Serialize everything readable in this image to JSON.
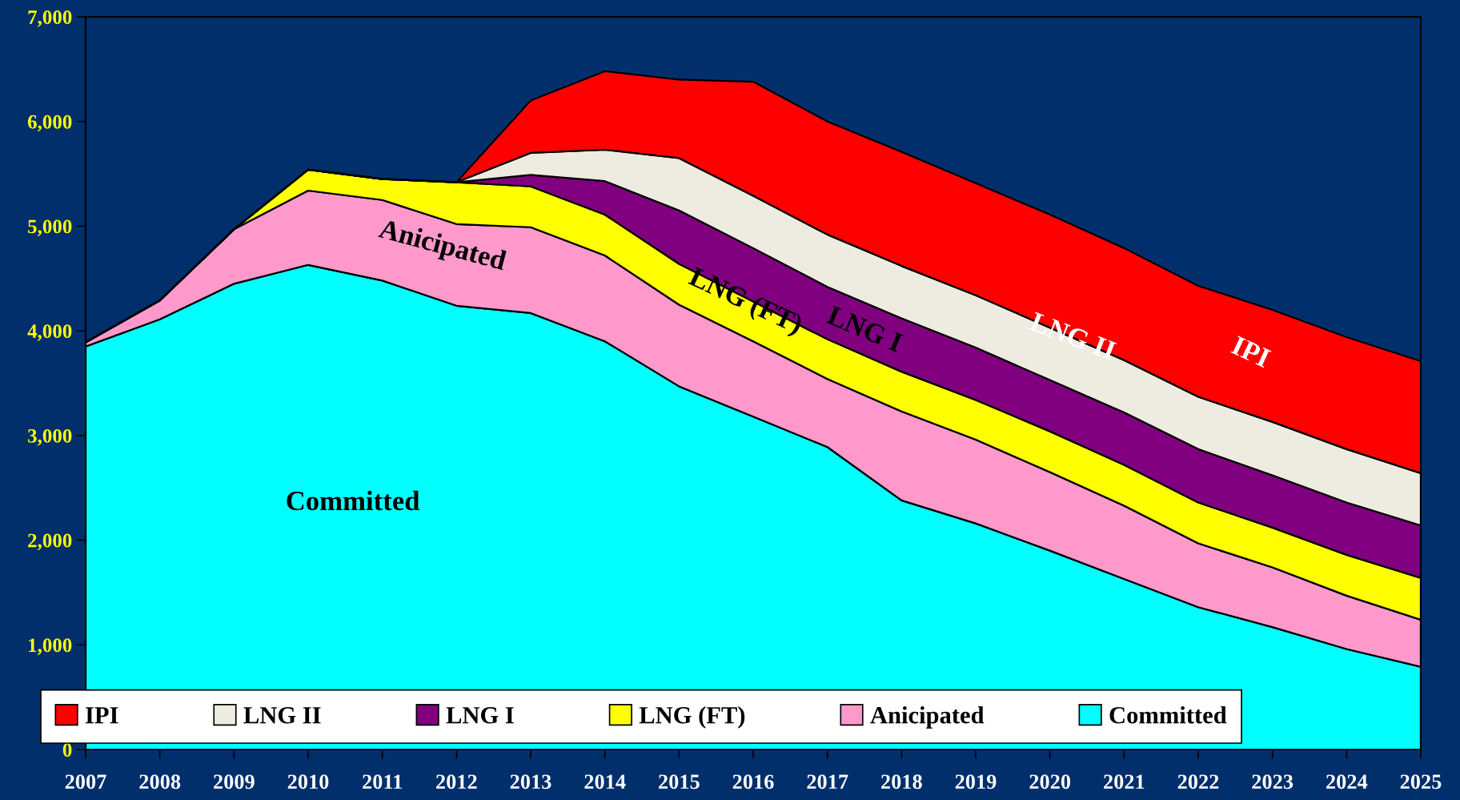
{
  "chart_data": {
    "type": "area",
    "stacked": true,
    "x": [
      2007,
      2008,
      2009,
      2010,
      2011,
      2012,
      2013,
      2014,
      2015,
      2016,
      2017,
      2018,
      2019,
      2020,
      2021,
      2022,
      2023,
      2024,
      2025
    ],
    "series": [
      {
        "name": "Committed",
        "color": "#00ffff",
        "values": [
          3850,
          4110,
          4450,
          4630,
          4480,
          4240,
          4170,
          3900,
          3470,
          3180,
          2890,
          2380,
          2160,
          1900,
          1630,
          1360,
          1170,
          960,
          790
        ]
      },
      {
        "name": "Anicipated",
        "color": "#ff99cc",
        "values": [
          40,
          180,
          520,
          710,
          770,
          780,
          820,
          820,
          780,
          720,
          650,
          850,
          800,
          750,
          700,
          610,
          570,
          510,
          450
        ]
      },
      {
        "name": "LNG (FT)",
        "color": "#ffff00",
        "values": [
          0,
          0,
          0,
          200,
          200,
          400,
          390,
          390,
          390,
          380,
          380,
          380,
          380,
          390,
          390,
          390,
          380,
          390,
          400
        ]
      },
      {
        "name": "LNG I",
        "color": "#800080",
        "values": [
          0,
          0,
          0,
          0,
          0,
          0,
          110,
          320,
          510,
          510,
          500,
          510,
          500,
          490,
          500,
          510,
          500,
          500,
          500
        ]
      },
      {
        "name": "LNG II",
        "color": "#eeebe0",
        "values": [
          0,
          0,
          0,
          0,
          0,
          0,
          210,
          300,
          500,
          500,
          500,
          500,
          500,
          500,
          500,
          500,
          510,
          510,
          500
        ]
      },
      {
        "name": "IPI",
        "color": "#ff0000",
        "values": [
          0,
          0,
          0,
          0,
          0,
          0,
          500,
          750,
          750,
          1090,
          1080,
          1090,
          1070,
          1080,
          1070,
          1060,
          1070,
          1070,
          1070
        ]
      }
    ],
    "xlim": [
      2007,
      2025
    ],
    "xticks": [
      2007,
      2008,
      2009,
      2010,
      2011,
      2012,
      2013,
      2014,
      2015,
      2016,
      2017,
      2018,
      2019,
      2020,
      2021,
      2022,
      2023,
      2024,
      2025
    ],
    "ylim": [
      0,
      7000
    ],
    "yticks": [
      0,
      {
        "value": 1000,
        "label": "1,000"
      },
      {
        "value": 2000,
        "label": "2,000"
      },
      {
        "value": 3000,
        "label": "3,000"
      },
      {
        "value": 4000,
        "label": "4,000"
      },
      {
        "value": 5000,
        "label": "5,000"
      },
      {
        "value": 6000,
        "label": "6,000"
      },
      {
        "value": 7000,
        "label": "7,000"
      }
    ],
    "annotations": [
      "Committed",
      "Anicipated",
      "LNG (FT)",
      "LNG I",
      "LNG II",
      "IPI"
    ],
    "legend": "bottom left",
    "grid": false
  }
}
